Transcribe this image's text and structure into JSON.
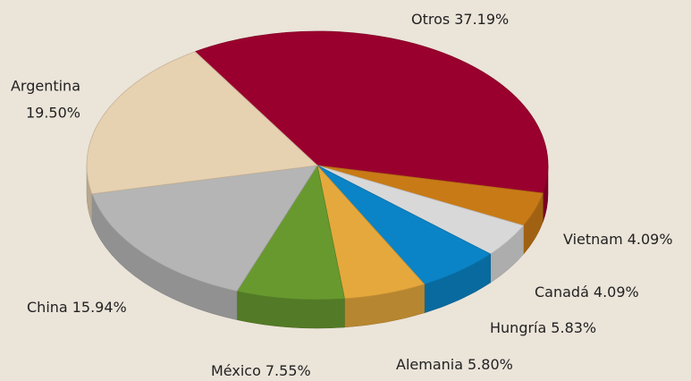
{
  "chart_data": {
    "type": "pie",
    "categories": [
      "Otros",
      "Vietnam",
      "Canadá",
      "Hungría",
      "Alemania",
      "México",
      "China",
      "Argentina"
    ],
    "values": [
      37.19,
      4.09,
      4.09,
      5.83,
      5.8,
      7.55,
      15.94,
      19.5
    ],
    "value_labels": [
      "37.19%",
      "4.09%",
      "4.09%",
      "5.83%",
      "5.80%",
      "7.55%",
      "15.94%",
      "19.50%"
    ],
    "colors": [
      "#9a002e",
      "#c87a16",
      "#d8d8d8",
      "#0a84c6",
      "#e5a83c",
      "#68992f",
      "#b5b5b5",
      "#e6d1b1"
    ]
  }
}
